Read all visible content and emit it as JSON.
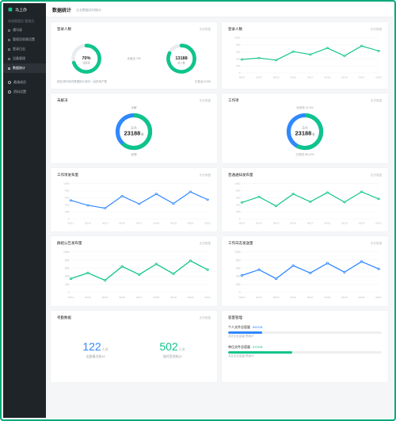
{
  "brand": "马上办",
  "sidebar": {
    "section_title": "系统管理员 管理员",
    "items": [
      {
        "label": "通讯录"
      },
      {
        "label": "管理员权限设置"
      },
      {
        "label": "登录日志"
      },
      {
        "label": "设备管理"
      },
      {
        "label": "数据统计",
        "active": true
      }
    ],
    "footer_items": [
      {
        "label": "邀请成员"
      },
      {
        "label": "资料设置"
      }
    ]
  },
  "header": {
    "title": "数据统计",
    "sub": "企业数据实时统计"
  },
  "link_text": "历史数据",
  "colors": {
    "green": "#0fc48b",
    "blue": "#2f88ff",
    "grid": "#eef0f2",
    "axis_text": "#b5bbc1",
    "track": "#e9ecef"
  },
  "row1_left": {
    "title": "登录人数",
    "mid_text": "未激活 790",
    "gauge1": {
      "value_text": "70%",
      "sub": "活跃率",
      "percent": 70,
      "color": "#0fc48b"
    },
    "gauge2": {
      "value_text": "13188",
      "sub": "总人数",
      "percent": 82,
      "color": "#0fc48b"
    },
    "foot_left": "指在线时间内数据统计双向一活跃用户数",
    "foot_right": "已激活12398"
  },
  "row1_right": {
    "title": "登录人数",
    "chart": {
      "type": "line",
      "y_ticks": [
        "1000",
        "800",
        "600",
        "400",
        "200",
        "0"
      ],
      "x_labels": [
        "06/13",
        "06/14",
        "06/15",
        "06/16",
        "06/17",
        "06/18",
        "06/19",
        "06/20",
        "06/21"
      ],
      "values": [
        380,
        420,
        360,
        600,
        520,
        700,
        480,
        760,
        620
      ],
      "ylim": [
        0,
        1000
      ],
      "stroke": "#0fc48b",
      "grid": "#eef0f2"
    }
  },
  "row2_left": {
    "title": "未解决",
    "top_label": "未解",
    "bottom_label": "经理",
    "center_label": "总共",
    "value": "23188",
    "unit": "条",
    "donut": {
      "seg1_pct": 62,
      "seg1_color": "#0fc48b",
      "seg2_color": "#2f88ff"
    }
  },
  "row2_right": {
    "title": "工作项",
    "top_label": "未完成 41.9%",
    "bottom_label": "已完成 58.10%",
    "center_label": "总共",
    "value": "23188",
    "unit": "条",
    "donut": {
      "seg1_pct": 58,
      "seg1_color": "#0fc48b",
      "seg2_color": "#2f88ff"
    }
  },
  "row3_left": {
    "title": "工作项发布量",
    "chart": {
      "type": "line",
      "ylim": [
        0,
        1000
      ],
      "y_ticks": [
        "1000",
        "800",
        "600",
        "400",
        "200",
        "0"
      ],
      "x_labels": [
        "06/13",
        "06/14",
        "06/15",
        "06/16",
        "06/17",
        "06/18",
        "06/19",
        "06/20",
        "06/21"
      ],
      "values": [
        520,
        380,
        300,
        640,
        420,
        700,
        430,
        760,
        540
      ],
      "stroke": "#2f88ff"
    }
  },
  "row3_right": {
    "title": "普通通知发布量",
    "chart": {
      "type": "line",
      "ylim": [
        0,
        1000
      ],
      "y_ticks": [
        "1000",
        "800",
        "600",
        "400",
        "200",
        "0"
      ],
      "x_labels": [
        "06/13",
        "06/14",
        "06/15",
        "06/16",
        "06/17",
        "06/18",
        "06/19",
        "06/20",
        "06/21"
      ],
      "values": [
        460,
        620,
        360,
        700,
        480,
        740,
        470,
        760,
        560
      ],
      "stroke": "#0fc48b"
    }
  },
  "row4_left": {
    "title": "群组公告发布量",
    "chart": {
      "type": "line",
      "ylim": [
        0,
        1000
      ],
      "y_ticks": [
        "1000",
        "800",
        "600",
        "400",
        "200",
        "0"
      ],
      "x_labels": [
        "06/13",
        "06/14",
        "06/15",
        "06/16",
        "06/17",
        "06/18",
        "06/19",
        "06/20",
        "06/21"
      ],
      "values": [
        340,
        480,
        300,
        640,
        440,
        700,
        460,
        780,
        560
      ],
      "stroke": "#0fc48b"
    }
  },
  "row4_right": {
    "title": "工作日志发送量",
    "chart": {
      "type": "line",
      "ylim": [
        0,
        1000
      ],
      "y_ticks": [
        "1000",
        "800",
        "600",
        "400",
        "200",
        "0"
      ],
      "x_labels": [
        "06/13",
        "06/14",
        "06/15",
        "06/16",
        "06/17",
        "06/18",
        "06/19",
        "06/20",
        "06/21"
      ],
      "values": [
        420,
        560,
        340,
        660,
        480,
        720,
        500,
        760,
        580
      ],
      "stroke": "#2f88ff"
    }
  },
  "row5_left": {
    "title": "考勤数据",
    "nums": [
      {
        "value": "122",
        "unit": "人次",
        "label": "出勤情况统计",
        "color": "#2f88ff"
      },
      {
        "value": "502",
        "unit": "人次",
        "label": "准时签到统计",
        "color": "#0fc48b"
      }
    ]
  },
  "row5_right": {
    "title": "容量管理",
    "rows": [
      {
        "name": "个人文件总容量",
        "amount": "850GB",
        "color": "#2f88ff",
        "used_pct": 22,
        "foot": "共计企业容量 预设2T"
      },
      {
        "name": "单位文件总容量",
        "amount": "870GB",
        "color": "#0fc48b",
        "used_pct": 42,
        "foot": "共计企业容量 预设2T"
      }
    ]
  }
}
